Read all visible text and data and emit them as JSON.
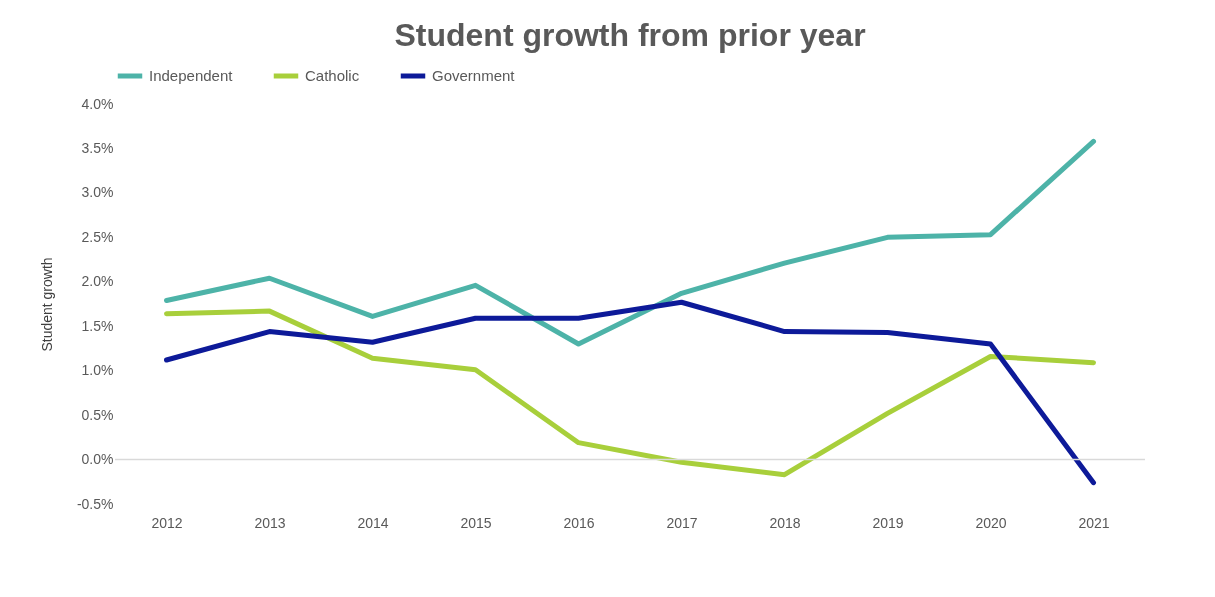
{
  "chart_data": {
    "type": "line",
    "title": "Student growth from prior year",
    "ylabel": "Student growth",
    "categories": [
      "2012",
      "2013",
      "2014",
      "2015",
      "2016",
      "2017",
      "2018",
      "2019",
      "2020",
      "2021"
    ],
    "series": [
      {
        "name": "Independent",
        "color": "#4db3a8",
        "values": [
          1.79,
          2.04,
          1.61,
          1.96,
          1.3,
          1.87,
          2.21,
          2.5,
          2.53,
          3.58
        ]
      },
      {
        "name": "Catholic",
        "color": "#a8cf3b",
        "values": [
          1.64,
          1.67,
          1.14,
          1.01,
          0.19,
          -0.03,
          -0.17,
          0.52,
          1.16,
          1.09
        ]
      },
      {
        "name": "Government",
        "color": "#0d1a99",
        "values": [
          1.12,
          1.44,
          1.32,
          1.59,
          1.59,
          1.77,
          1.44,
          1.43,
          1.3,
          -0.26
        ]
      }
    ],
    "ylim": [
      -0.5,
      4
    ],
    "yticks": [
      {
        "value": -0.5,
        "label": "-0.5%"
      },
      {
        "value": 0,
        "label": "0.0%"
      },
      {
        "value": 0.5,
        "label": "0.5%"
      },
      {
        "value": 1,
        "label": "1.0%"
      },
      {
        "value": 1.5,
        "label": "1.5%"
      },
      {
        "value": 2,
        "label": "2.0%"
      },
      {
        "value": 2.5,
        "label": "2.5%"
      },
      {
        "value": 3,
        "label": "3.0%"
      },
      {
        "value": 3.5,
        "label": "3.5%"
      },
      {
        "value": 4,
        "label": "4.0%"
      }
    ],
    "grid": false,
    "legend": "top",
    "line_style": "solid",
    "ref_lines": [
      {
        "axis": "y",
        "value": 0,
        "color": "#d9d9d9"
      }
    ]
  }
}
